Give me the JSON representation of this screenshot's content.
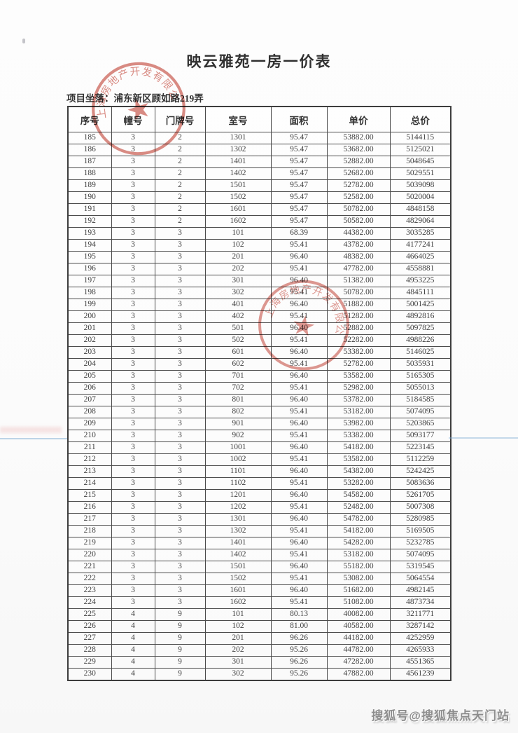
{
  "page": {
    "title": "映云雅苑一房一价表",
    "location_label": "项目坐落：浦东新区顾如路219弄",
    "watermark": "搜狐号@搜狐焦点天门站"
  },
  "table": {
    "headers": [
      "序号",
      "幢号",
      "门牌号",
      "室号",
      "面积",
      "单价",
      "总价"
    ],
    "rows": [
      [
        "185",
        "3",
        "2",
        "1301",
        "95.47",
        "53882.00",
        "5144115"
      ],
      [
        "186",
        "3",
        "2",
        "1302",
        "95.47",
        "53682.00",
        "5125021"
      ],
      [
        "187",
        "3",
        "2",
        "1401",
        "95.47",
        "52882.00",
        "5048645"
      ],
      [
        "188",
        "3",
        "2",
        "1402",
        "95.47",
        "52682.00",
        "5029551"
      ],
      [
        "189",
        "3",
        "2",
        "1501",
        "95.47",
        "52782.00",
        "5039098"
      ],
      [
        "190",
        "3",
        "2",
        "1502",
        "95.47",
        "52582.00",
        "5020004"
      ],
      [
        "191",
        "3",
        "2",
        "1601",
        "95.47",
        "50782.00",
        "4848158"
      ],
      [
        "192",
        "3",
        "2",
        "1602",
        "95.47",
        "50582.00",
        "4829064"
      ],
      [
        "193",
        "3",
        "3",
        "101",
        "68.39",
        "44382.00",
        "3035285"
      ],
      [
        "194",
        "3",
        "3",
        "102",
        "95.41",
        "43782.00",
        "4177241"
      ],
      [
        "195",
        "3",
        "3",
        "201",
        "96.40",
        "48382.00",
        "4664025"
      ],
      [
        "196",
        "3",
        "3",
        "202",
        "95.41",
        "47782.00",
        "4558881"
      ],
      [
        "197",
        "3",
        "3",
        "301",
        "96.40",
        "51382.00",
        "4953225"
      ],
      [
        "198",
        "3",
        "3",
        "302",
        "95.41",
        "50782.00",
        "4845111"
      ],
      [
        "199",
        "3",
        "3",
        "401",
        "96.40",
        "51882.00",
        "5001425"
      ],
      [
        "200",
        "3",
        "3",
        "402",
        "95.41",
        "51282.00",
        "4892816"
      ],
      [
        "201",
        "3",
        "3",
        "501",
        "96.40",
        "52882.00",
        "5097825"
      ],
      [
        "202",
        "3",
        "3",
        "502",
        "95.41",
        "52282.00",
        "4988226"
      ],
      [
        "203",
        "3",
        "3",
        "601",
        "96.40",
        "53382.00",
        "5146025"
      ],
      [
        "204",
        "3",
        "3",
        "602",
        "95.41",
        "52782.00",
        "5035931"
      ],
      [
        "205",
        "3",
        "3",
        "701",
        "96.40",
        "53582.00",
        "5165305"
      ],
      [
        "206",
        "3",
        "3",
        "702",
        "95.41",
        "52982.00",
        "5055013"
      ],
      [
        "207",
        "3",
        "3",
        "801",
        "96.40",
        "53782.00",
        "5184585"
      ],
      [
        "208",
        "3",
        "3",
        "802",
        "95.41",
        "53182.00",
        "5074095"
      ],
      [
        "209",
        "3",
        "3",
        "901",
        "96.40",
        "53982.00",
        "5203865"
      ],
      [
        "210",
        "3",
        "3",
        "902",
        "95.41",
        "53382.00",
        "5093177"
      ],
      [
        "211",
        "3",
        "3",
        "1001",
        "96.40",
        "54182.00",
        "5223145"
      ],
      [
        "212",
        "3",
        "3",
        "1002",
        "95.41",
        "53582.00",
        "5112259"
      ],
      [
        "213",
        "3",
        "3",
        "1101",
        "96.40",
        "54382.00",
        "5242425"
      ],
      [
        "214",
        "3",
        "3",
        "1102",
        "95.41",
        "53282.00",
        "5083636"
      ],
      [
        "215",
        "3",
        "3",
        "1201",
        "96.40",
        "54582.00",
        "5261705"
      ],
      [
        "216",
        "3",
        "3",
        "1202",
        "95.41",
        "52482.00",
        "5007308"
      ],
      [
        "217",
        "3",
        "3",
        "1301",
        "96.40",
        "54782.00",
        "5280985"
      ],
      [
        "218",
        "3",
        "3",
        "1302",
        "95.41",
        "54182.00",
        "5169505"
      ],
      [
        "219",
        "3",
        "3",
        "1401",
        "96.40",
        "54282.00",
        "5232785"
      ],
      [
        "220",
        "3",
        "3",
        "1402",
        "95.41",
        "53182.00",
        "5074095"
      ],
      [
        "221",
        "3",
        "3",
        "1501",
        "96.40",
        "55182.00",
        "5319545"
      ],
      [
        "222",
        "3",
        "3",
        "1502",
        "95.41",
        "53082.00",
        "5064554"
      ],
      [
        "223",
        "3",
        "3",
        "1601",
        "96.40",
        "51682.00",
        "4982145"
      ],
      [
        "224",
        "3",
        "3",
        "1602",
        "95.41",
        "51082.00",
        "4873734"
      ],
      [
        "225",
        "4",
        "9",
        "101",
        "80.13",
        "40082.00",
        "3211771"
      ],
      [
        "226",
        "4",
        "9",
        "102",
        "81.00",
        "40582.00",
        "3287142"
      ],
      [
        "227",
        "4",
        "9",
        "201",
        "96.26",
        "44182.00",
        "4252959"
      ],
      [
        "228",
        "4",
        "9",
        "202",
        "95.26",
        "44782.00",
        "4265933"
      ],
      [
        "229",
        "4",
        "9",
        "301",
        "96.26",
        "47282.00",
        "4551365"
      ],
      [
        "230",
        "4",
        "9",
        "302",
        "95.26",
        "47882.00",
        "4561239"
      ]
    ]
  },
  "stamps": {
    "arc_text": "上海房地产开发有限公司",
    "star_icon": "★",
    "color": "#c0392b"
  },
  "colors": {
    "seal_red": "#c0392b",
    "table_border": "#4b4b4b",
    "scan_artifact_blue": "#80aed4",
    "watermark_gray": "#8d8d8d"
  }
}
